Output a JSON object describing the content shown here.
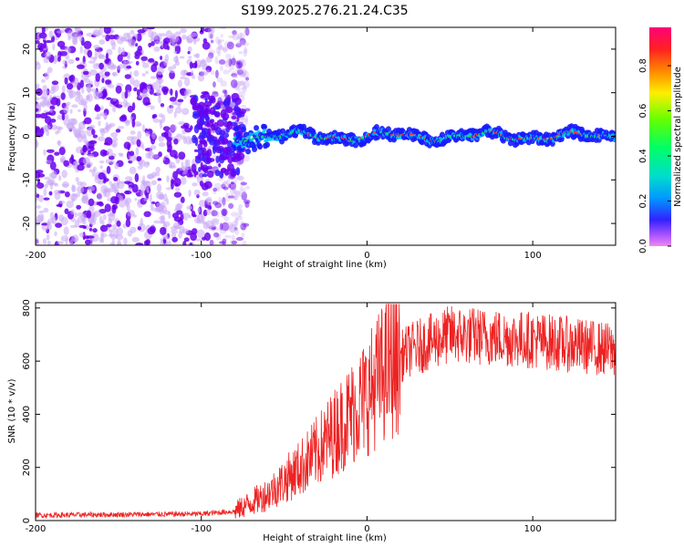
{
  "title": "S199.2025.276.21.24.C35",
  "chart_data": [
    {
      "id": "spectrogram",
      "type": "heatmap",
      "xlabel": "Height of straight line (km)",
      "ylabel": "Frequency (Hz)",
      "xlim": [
        -200,
        150
      ],
      "ylim": [
        -25,
        25
      ],
      "xticks": [
        -200,
        -100,
        0,
        100
      ],
      "yticks": [
        -20,
        -10,
        0,
        10,
        20
      ],
      "colorbar": {
        "label": "Normalized spectral amplitude",
        "range": [
          0,
          0.97
        ],
        "ticks": [
          0.0,
          0.2,
          0.4,
          0.6,
          0.8
        ],
        "colormap": [
          "#ee88ee",
          "#8833ee",
          "#2222ff",
          "#00bbff",
          "#00ff99",
          "#22ee22",
          "#ccee00",
          "#ff9900",
          "#ff2222",
          "#ff0066"
        ]
      },
      "noise_region": {
        "x_from": -200,
        "x_to": -80,
        "freq_spread": 25
      },
      "signal_line": {
        "x_from": -80,
        "x_to": 150,
        "freq_center": 0,
        "freq_width": 2.5
      },
      "colors": {
        "noise_strong": "#6a00ee",
        "noise_weak": "#c9a6f5",
        "signal_core": "#ff3030",
        "signal_mid": "#19d66b",
        "signal_edge": "#1a1aff"
      }
    },
    {
      "id": "snr",
      "type": "line",
      "xlabel": "Height of straight line (km)",
      "ylabel": "SNR (10 * v/v)",
      "xlim": [
        -200,
        150
      ],
      "ylim": [
        0,
        820
      ],
      "xticks": [
        -200,
        -100,
        0,
        100
      ],
      "yticks": [
        0,
        200,
        400,
        600,
        800
      ],
      "color": "#ee2222",
      "profile": [
        {
          "x": -200,
          "y": 20
        },
        {
          "x": -100,
          "y": 25
        },
        {
          "x": -80,
          "y": 35
        },
        {
          "x": -60,
          "y": 100
        },
        {
          "x": -40,
          "y": 200
        },
        {
          "x": -30,
          "y": 260
        },
        {
          "x": -20,
          "y": 330
        },
        {
          "x": -10,
          "y": 400
        },
        {
          "x": 0,
          "y": 470
        },
        {
          "x": 10,
          "y": 560
        },
        {
          "x": 25,
          "y": 640
        },
        {
          "x": 50,
          "y": 700
        },
        {
          "x": 100,
          "y": 680
        },
        {
          "x": 150,
          "y": 640
        }
      ]
    }
  ]
}
